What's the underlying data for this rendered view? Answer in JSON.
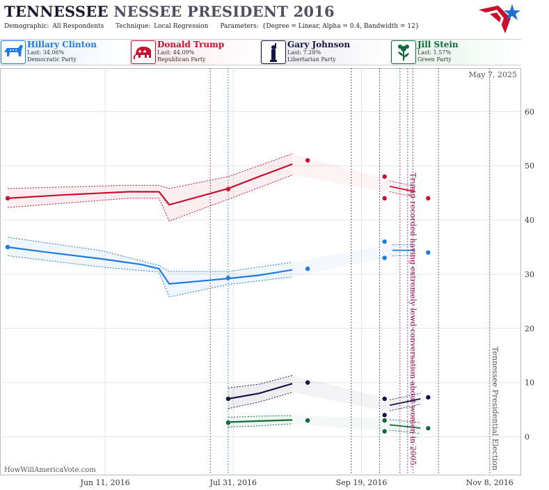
{
  "header": {
    "title_part1": "TENNESSEE",
    "title_part2": "NESSEE PRESIDENT 2016",
    "demographic_label": "Demographic:",
    "demographic_value": "All Respondents",
    "technique_label": "Technique:",
    "technique_value": "Local Regression",
    "parameters_label": "Parameters:",
    "parameters_value": "{Degree = Linear, Alpha = 0.4, Bandwidth = 12}"
  },
  "candidates": [
    {
      "name": "Hillary Clinton",
      "last": "Last: 34.06%",
      "party": "Democratic Party",
      "color": "#1f7ae0",
      "icon": "donkey-icon"
    },
    {
      "name": "Donald Trump",
      "last": "Last: 44.09%",
      "party": "Republican Party",
      "color": "#c8102e",
      "icon": "elephant-icon"
    },
    {
      "name": "Gary Johnson",
      "last": "Last: 7.28%",
      "party": "Libertarian Party",
      "color": "#141446",
      "icon": "liberty-torch-icon"
    },
    {
      "name": "Jill Stein",
      "last": "Last: 1.57%",
      "party": "Green Party",
      "color": "#0e6b3a",
      "icon": "flower-icon"
    }
  ],
  "chart_data": {
    "type": "line",
    "date_label": "May 7, 2025",
    "watermark": "HowWillAmericaVote.com",
    "x_ticks": [
      "2016-06-11",
      "2016-07-31",
      "2016-09-19",
      "2016-11-08"
    ],
    "x_tick_labels": [
      "Jun 11, 2016",
      "Jul 31, 2016",
      "Sep 19, 2016",
      "Nov 8, 2016"
    ],
    "x_range": [
      "2016-05-01",
      "2016-11-20"
    ],
    "y_ticks": [
      0,
      10,
      20,
      30,
      40,
      50,
      60
    ],
    "ylim": [
      -7,
      68
    ],
    "grid": true,
    "annotations": [
      {
        "date": "2016-10-07",
        "text": "Trump recorded having extremely lewd conversation about women in 2005.",
        "color": "#a0185a"
      },
      {
        "date": "2016-11-08",
        "text": "Tennessee Presidential Election",
        "color": "#555555"
      }
    ],
    "event_lines": [
      {
        "date": "2016-07-22",
        "color": "#a0185a"
      },
      {
        "date": "2016-07-29",
        "color": "#2a7ab0"
      },
      {
        "date": "2016-09-15",
        "color": "#3a2a50"
      },
      {
        "date": "2016-09-26",
        "color": "#3a2a50"
      },
      {
        "date": "2016-10-04",
        "color": "#a0185a"
      },
      {
        "date": "2016-10-07",
        "color": "#a0185a"
      },
      {
        "date": "2016-10-09",
        "color": "#3a2a50"
      },
      {
        "date": "2016-10-19",
        "color": "#3a2a50"
      },
      {
        "date": "2016-11-08",
        "color": "#555555"
      }
    ],
    "series": [
      {
        "name": "Hillary Clinton",
        "color": "#1f7ae0",
        "points": [
          [
            "2016-05-04",
            35.0
          ],
          [
            "2016-07-29",
            29.3
          ],
          [
            "2016-08-29",
            31.0
          ],
          [
            "2016-09-28",
            33.0
          ],
          [
            "2016-09-28",
            36.0
          ],
          [
            "2016-10-15",
            34.0
          ]
        ],
        "trend": [
          [
            "2016-05-04",
            35.0
          ],
          [
            "2016-05-20",
            34.0
          ],
          [
            "2016-06-10",
            32.8
          ],
          [
            "2016-06-25",
            31.8
          ],
          [
            "2016-07-02",
            31.0
          ],
          [
            "2016-07-06",
            28.2
          ],
          [
            "2016-07-20",
            28.8
          ],
          [
            "2016-07-29",
            29.2
          ],
          [
            "2016-08-10",
            29.8
          ],
          [
            "2016-08-23",
            30.8
          ]
        ],
        "upper": [
          [
            "2016-05-04",
            36.8
          ],
          [
            "2016-06-10",
            34.3
          ],
          [
            "2016-07-02",
            31.6
          ],
          [
            "2016-07-06",
            30.5
          ],
          [
            "2016-07-29",
            30.5
          ],
          [
            "2016-08-23",
            32.2
          ]
        ],
        "lower": [
          [
            "2016-05-04",
            33.4
          ],
          [
            "2016-06-10",
            31.3
          ],
          [
            "2016-07-02",
            30.4
          ],
          [
            "2016-07-06",
            25.8
          ],
          [
            "2016-07-29",
            28.1
          ],
          [
            "2016-08-23",
            29.5
          ]
        ],
        "trend2": [
          [
            "2016-10-01",
            34.4
          ],
          [
            "2016-10-10",
            34.4
          ]
        ]
      },
      {
        "name": "Donald Trump",
        "color": "#c8102e",
        "points": [
          [
            "2016-05-04",
            44.0
          ],
          [
            "2016-07-29",
            45.7
          ],
          [
            "2016-08-29",
            51.0
          ],
          [
            "2016-09-28",
            48.0
          ],
          [
            "2016-09-28",
            44.0
          ],
          [
            "2016-10-15",
            44.0
          ]
        ],
        "trend": [
          [
            "2016-05-04",
            44.0
          ],
          [
            "2016-05-25",
            44.6
          ],
          [
            "2016-06-20",
            45.2
          ],
          [
            "2016-07-02",
            45.2
          ],
          [
            "2016-07-06",
            42.8
          ],
          [
            "2016-07-29",
            45.8
          ],
          [
            "2016-08-10",
            48.0
          ],
          [
            "2016-08-23",
            50.3
          ]
        ],
        "upper": [
          [
            "2016-05-04",
            45.8
          ],
          [
            "2016-06-20",
            46.4
          ],
          [
            "2016-07-02",
            46.4
          ],
          [
            "2016-07-06",
            45.8
          ],
          [
            "2016-07-29",
            48.0
          ],
          [
            "2016-08-23",
            52.2
          ]
        ],
        "lower": [
          [
            "2016-05-04",
            42.3
          ],
          [
            "2016-06-20",
            44.0
          ],
          [
            "2016-07-02",
            44.0
          ],
          [
            "2016-07-06",
            39.8
          ],
          [
            "2016-07-29",
            43.8
          ],
          [
            "2016-08-23",
            48.3
          ]
        ],
        "trend2": [
          [
            "2016-09-30",
            46.2
          ],
          [
            "2016-10-10",
            45.2
          ]
        ]
      },
      {
        "name": "Gary Johnson",
        "color": "#141446",
        "points": [
          [
            "2016-07-29",
            7.0
          ],
          [
            "2016-08-29",
            10.0
          ],
          [
            "2016-09-28",
            7.0
          ],
          [
            "2016-09-28",
            4.0
          ],
          [
            "2016-10-15",
            7.28
          ]
        ],
        "trend": [
          [
            "2016-07-29",
            7.0
          ],
          [
            "2016-08-10",
            8.0
          ],
          [
            "2016-08-23",
            9.8
          ]
        ],
        "upper": [
          [
            "2016-07-29",
            9.0
          ],
          [
            "2016-08-10",
            9.7
          ],
          [
            "2016-08-23",
            11.3
          ]
        ],
        "lower": [
          [
            "2016-07-29",
            5.2
          ],
          [
            "2016-08-10",
            6.4
          ],
          [
            "2016-08-23",
            8.2
          ]
        ],
        "trend2": [
          [
            "2016-09-30",
            5.8
          ],
          [
            "2016-10-12",
            7.0
          ]
        ]
      },
      {
        "name": "Jill Stein",
        "color": "#0e6b3a",
        "points": [
          [
            "2016-07-29",
            2.6
          ],
          [
            "2016-08-29",
            3.0
          ],
          [
            "2016-09-28",
            3.0
          ],
          [
            "2016-09-28",
            1.0
          ],
          [
            "2016-10-15",
            1.57
          ]
        ],
        "trend": [
          [
            "2016-07-29",
            2.7
          ],
          [
            "2016-08-10",
            2.9
          ],
          [
            "2016-08-23",
            3.1
          ]
        ],
        "upper": [
          [
            "2016-07-29",
            3.6
          ],
          [
            "2016-08-10",
            3.8
          ],
          [
            "2016-08-23",
            3.9
          ]
        ],
        "lower": [
          [
            "2016-07-29",
            1.8
          ],
          [
            "2016-08-10",
            2.0
          ],
          [
            "2016-08-23",
            2.4
          ]
        ],
        "trend2": [
          [
            "2016-09-30",
            2.2
          ],
          [
            "2016-10-12",
            1.6
          ]
        ]
      }
    ]
  }
}
